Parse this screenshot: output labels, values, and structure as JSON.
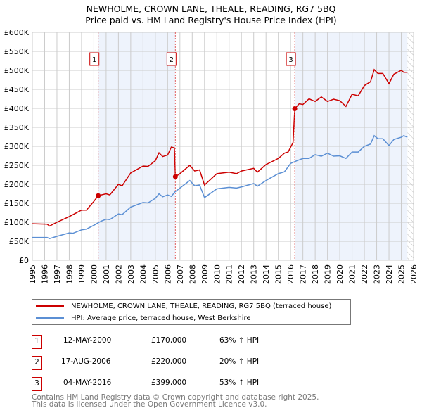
{
  "chart_data": {
    "type": "line",
    "title": "NEWHOLME, CROWN LANE, THEALE, READING, RG7 5BQ",
    "subtitle": "Price paid vs. HM Land Registry's House Price Index (HPI)",
    "xlim": [
      1995,
      2026
    ],
    "ylim": [
      0,
      600000
    ],
    "y_ticks": [
      "£0",
      "£50K",
      "£100K",
      "£150K",
      "£200K",
      "£250K",
      "£300K",
      "£350K",
      "£400K",
      "£450K",
      "£500K",
      "£550K",
      "£600K"
    ],
    "x_ticks": [
      "1995",
      "1996",
      "1997",
      "1998",
      "1999",
      "2000",
      "2001",
      "2002",
      "2003",
      "2004",
      "2005",
      "2006",
      "2007",
      "2008",
      "2009",
      "2010",
      "2011",
      "2012",
      "2013",
      "2014",
      "2015",
      "2016",
      "2017",
      "2018",
      "2019",
      "2020",
      "2021",
      "2022",
      "2023",
      "2024",
      "2025",
      "2026"
    ],
    "grid": true,
    "series": [
      {
        "name": "NEWHOLME, CROWN LANE, THEALE, READING, RG7 5BQ (terraced house)",
        "color": "#cc0000",
        "x": [
          1995,
          1996.2,
          1996.4,
          1997,
          1998,
          1998.3,
          1999,
          1999.4,
          2000,
          2000.36,
          2001,
          2001.3,
          2002,
          2002.3,
          2003,
          2004,
          2004.4,
          2005,
          2005.3,
          2005.6,
          2006,
          2006.3,
          2006.55,
          2006.63,
          2007,
          2007.8,
          2008.2,
          2008.6,
          2009,
          2010,
          2011,
          2011.6,
          2012,
          2013,
          2013.3,
          2014,
          2015,
          2015.5,
          2015.8,
          2016.2,
          2016.34,
          2016.7,
          2017,
          2017.5,
          2018,
          2018.5,
          2019,
          2019.5,
          2020,
          2020.5,
          2021,
          2021.5,
          2022,
          2022.5,
          2022.8,
          2023.1,
          2023.5,
          2024,
          2024.4,
          2025,
          2025.2,
          2025.5
        ],
        "y": [
          96000,
          95000,
          90000,
          100000,
          115000,
          120000,
          132000,
          132000,
          155000,
          170000,
          175000,
          172000,
          200000,
          196000,
          230000,
          248000,
          247000,
          262000,
          283000,
          273000,
          277000,
          298000,
          296000,
          220000,
          228000,
          250000,
          235000,
          238000,
          198000,
          228000,
          232000,
          228000,
          235000,
          242000,
          232000,
          252000,
          268000,
          282000,
          285000,
          310000,
          399000,
          412000,
          410000,
          425000,
          418000,
          430000,
          418000,
          424000,
          420000,
          405000,
          437000,
          433000,
          460000,
          470000,
          502000,
          492000,
          492000,
          465000,
          490000,
          500000,
          495000,
          495000
        ]
      },
      {
        "name": "HPI: Average price, terraced house, West Berkshire",
        "color": "#5b8fd4",
        "x": [
          1995,
          1996.2,
          1996.4,
          1997,
          1998,
          1998.3,
          1999,
          1999.4,
          2000,
          2000.6,
          2001,
          2001.3,
          2002,
          2002.3,
          2003,
          2004,
          2004.4,
          2005,
          2005.3,
          2005.6,
          2006,
          2006.3,
          2006.6,
          2007,
          2007.8,
          2008.2,
          2008.6,
          2009,
          2010,
          2011,
          2011.6,
          2012,
          2013,
          2013.3,
          2014,
          2015,
          2015.5,
          2016,
          2016.5,
          2017,
          2017.5,
          2018,
          2018.5,
          2019,
          2019.5,
          2020,
          2020.5,
          2021,
          2021.5,
          2022,
          2022.5,
          2022.8,
          2023.1,
          2023.5,
          2024,
          2024.4,
          2025,
          2025.2,
          2025.5
        ],
        "y": [
          60000,
          60000,
          57000,
          63000,
          72000,
          71000,
          80000,
          82000,
          92000,
          103000,
          108000,
          107000,
          122000,
          120000,
          140000,
          152000,
          151000,
          163000,
          175000,
          167000,
          172000,
          168000,
          180000,
          190000,
          210000,
          196000,
          198000,
          165000,
          188000,
          192000,
          190000,
          193000,
          202000,
          195000,
          210000,
          228000,
          233000,
          255000,
          262000,
          268000,
          268000,
          278000,
          274000,
          282000,
          274000,
          275000,
          268000,
          285000,
          285000,
          300000,
          306000,
          328000,
          320000,
          320000,
          302000,
          318000,
          324000,
          328000,
          324000
        ]
      }
    ],
    "sales": [
      {
        "label": "1",
        "x": 2000.36,
        "y": 170000
      },
      {
        "label": "2",
        "x": 2006.63,
        "y": 220000
      },
      {
        "label": "3",
        "x": 2016.34,
        "y": 399000
      }
    ],
    "shaded": [
      [
        2000.36,
        2006.63
      ],
      [
        2016.34,
        2025.5
      ]
    ],
    "hatched_from": 2025.5
  },
  "table": [
    {
      "num": "1",
      "date": "12-MAY-2000",
      "price": "£170,000",
      "hpi": "63% ↑ HPI"
    },
    {
      "num": "2",
      "date": "17-AUG-2006",
      "price": "£220,000",
      "hpi": "20% ↑ HPI"
    },
    {
      "num": "3",
      "date": "04-MAY-2016",
      "price": "£399,000",
      "hpi": "53% ↑ HPI"
    }
  ],
  "footer": {
    "line1": "Contains HM Land Registry data © Crown copyright and database right 2025.",
    "line2": "This data is licensed under the Open Government Licence v3.0."
  }
}
